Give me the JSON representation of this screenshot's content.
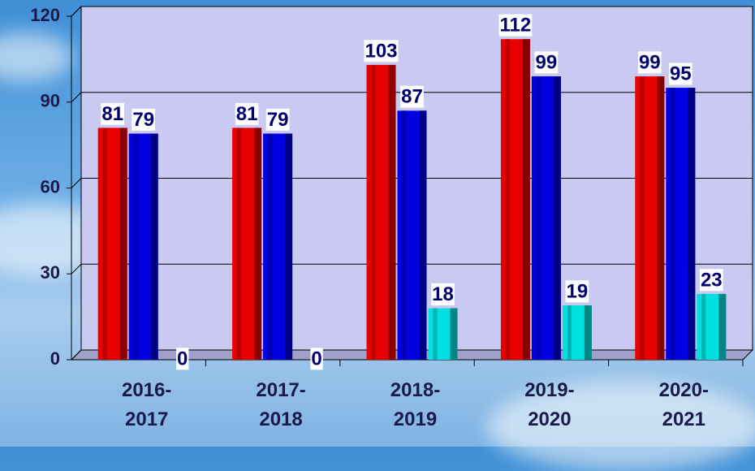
{
  "chart_data": {
    "type": "bar",
    "categories": [
      "2016-2017",
      "2017-2018",
      "2018-2019",
      "2019-2020",
      "2020-2021"
    ],
    "series": [
      {
        "color": "#e80000",
        "values": [
          81,
          81,
          103,
          112,
          99
        ]
      },
      {
        "color": "#0000e0",
        "values": [
          79,
          79,
          87,
          99,
          95
        ]
      },
      {
        "color": "#00e0e0",
        "values": [
          0,
          0,
          18,
          19,
          23
        ]
      }
    ],
    "ylim": [
      0,
      120
    ],
    "yticks": [
      0,
      30,
      60,
      90,
      120
    ],
    "grid": true
  }
}
